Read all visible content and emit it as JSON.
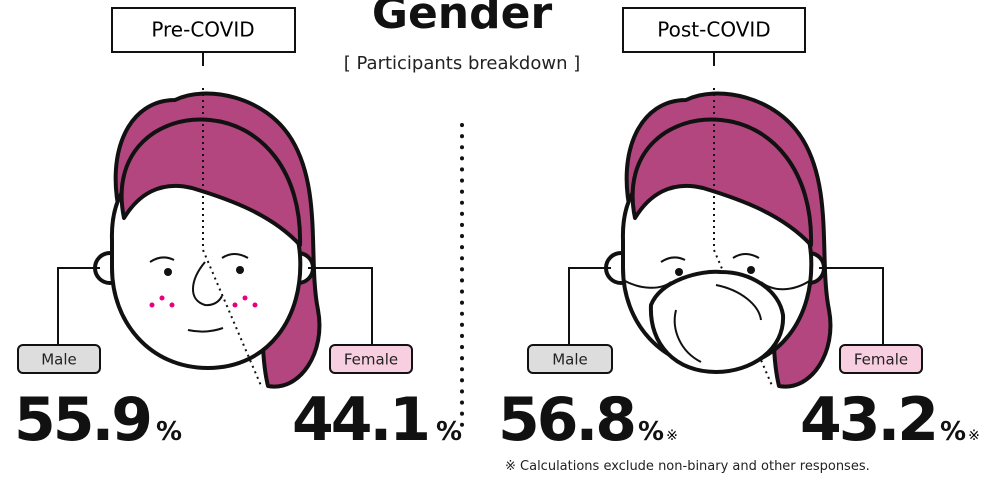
{
  "title": "Gender",
  "subtitle": "[ Participants breakdown ]",
  "panels": [
    {
      "label": "Pre-COVID",
      "male": {
        "label": "Male",
        "value": 55.9,
        "unit": "%"
      },
      "female": {
        "label": "Female",
        "value": 44.1,
        "unit": "%"
      }
    },
    {
      "label": "Post-COVID",
      "male": {
        "label": "Male",
        "value": 56.8,
        "unit": "%",
        "note_mark": "※"
      },
      "female": {
        "label": "Female",
        "value": 43.2,
        "unit": "%",
        "note_mark": "※"
      }
    }
  ],
  "footnote": "※ Calculations exclude non-binary and other responses."
}
